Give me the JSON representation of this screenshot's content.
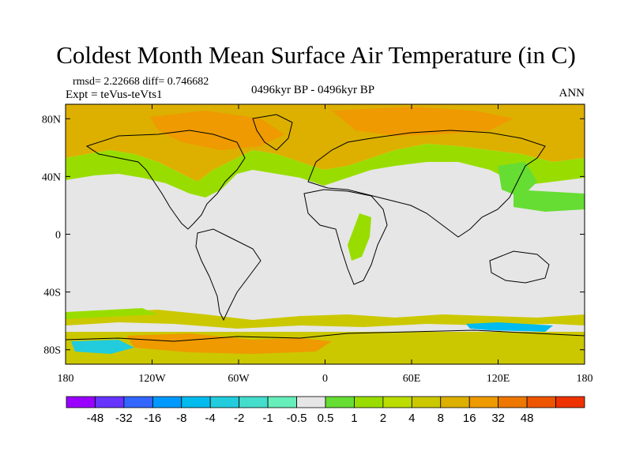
{
  "title": "Coldest Month Mean Surface Air Temperature (in C)",
  "stats": {
    "rmsd": "rmsd= 2.22668 diff= 0.746682",
    "expt": "Expt = teVus-teVts1"
  },
  "period": "0496kyr BP - 0496kyr BP",
  "season": "ANN",
  "axes": {
    "lon_ticks": [
      {
        "value": -180,
        "label": "180"
      },
      {
        "value": -120,
        "label": "120W"
      },
      {
        "value": -60,
        "label": "60W"
      },
      {
        "value": 0,
        "label": "0"
      },
      {
        "value": 60,
        "label": "60E"
      },
      {
        "value": 120,
        "label": "120E"
      },
      {
        "value": 180,
        "label": "180"
      }
    ],
    "lat_ticks": [
      {
        "value": 80,
        "label": "80N"
      },
      {
        "value": 40,
        "label": "40N"
      },
      {
        "value": 0,
        "label": "0"
      },
      {
        "value": -40,
        "label": "40S"
      },
      {
        "value": -80,
        "label": "80S"
      }
    ],
    "lon_range": [
      -180,
      180
    ],
    "lat_range": [
      -90,
      90
    ]
  },
  "colorbar": {
    "colors": [
      "#9900ff",
      "#6633ff",
      "#3366ff",
      "#0099ff",
      "#00bbee",
      "#22ccdd",
      "#44ddcc",
      "#66eebb",
      "#e6e6e6",
      "#66dd33",
      "#99dd00",
      "#bbdd00",
      "#ccc800",
      "#ddb000",
      "#ee9a00",
      "#ee7700",
      "#ee5500",
      "#ee3300"
    ],
    "labels": [
      "-48",
      "-32",
      "-16",
      "-8",
      "-4",
      "-2",
      "-1",
      "-0.5",
      "0.5",
      "1",
      "2",
      "4",
      "8",
      "16",
      "32",
      "48"
    ]
  }
}
